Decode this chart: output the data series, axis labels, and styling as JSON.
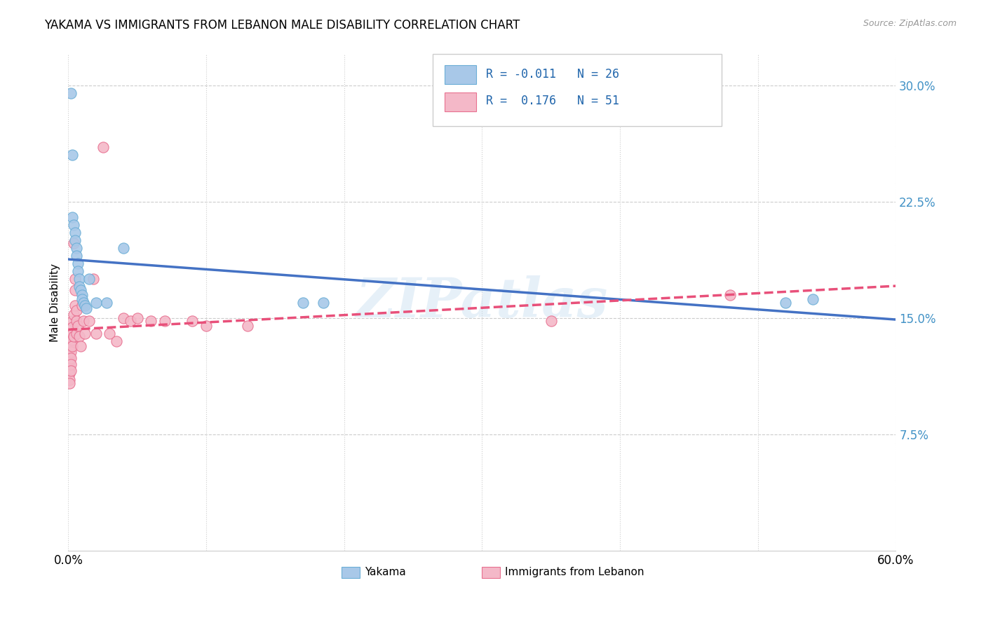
{
  "title": "YAKAMA VS IMMIGRANTS FROM LEBANON MALE DISABILITY CORRELATION CHART",
  "source": "Source: ZipAtlas.com",
  "ylabel": "Male Disability",
  "x_min": 0.0,
  "x_max": 0.6,
  "y_min": 0.0,
  "y_max": 0.32,
  "x_ticks": [
    0.0,
    0.1,
    0.2,
    0.3,
    0.4,
    0.5,
    0.6
  ],
  "x_tick_labels": [
    "0.0%",
    "",
    "",
    "",
    "",
    "",
    "60.0%"
  ],
  "y_ticks_right": [
    0.075,
    0.15,
    0.225,
    0.3
  ],
  "y_tick_labels_right": [
    "7.5%",
    "15.0%",
    "22.5%",
    "30.0%"
  ],
  "legend_label1": "Yakama",
  "legend_label2": "Immigrants from Lebanon",
  "R1": "-0.011",
  "N1": "26",
  "R2": "0.176",
  "N2": "51",
  "color_blue": "#a8c8e8",
  "color_blue_edge": "#6baed6",
  "color_pink": "#f4b8c8",
  "color_pink_edge": "#e87090",
  "color_line_blue": "#4472c4",
  "color_line_pink": "#e8507a",
  "watermark": "ZIPatlas",
  "yakama_x": [
    0.002,
    0.003,
    0.003,
    0.004,
    0.005,
    0.005,
    0.006,
    0.006,
    0.007,
    0.007,
    0.008,
    0.008,
    0.009,
    0.01,
    0.01,
    0.011,
    0.012,
    0.013,
    0.015,
    0.02,
    0.028,
    0.04,
    0.17,
    0.185,
    0.52,
    0.54
  ],
  "yakama_y": [
    0.295,
    0.255,
    0.215,
    0.21,
    0.205,
    0.2,
    0.195,
    0.19,
    0.185,
    0.18,
    0.175,
    0.17,
    0.168,
    0.165,
    0.162,
    0.16,
    0.158,
    0.156,
    0.175,
    0.16,
    0.16,
    0.195,
    0.16,
    0.16,
    0.16,
    0.162
  ],
  "lebanon_x": [
    0.001,
    0.001,
    0.001,
    0.001,
    0.001,
    0.001,
    0.001,
    0.001,
    0.002,
    0.002,
    0.002,
    0.002,
    0.002,
    0.002,
    0.002,
    0.003,
    0.003,
    0.003,
    0.003,
    0.003,
    0.004,
    0.004,
    0.004,
    0.005,
    0.005,
    0.005,
    0.006,
    0.006,
    0.006,
    0.007,
    0.008,
    0.009,
    0.01,
    0.011,
    0.012,
    0.015,
    0.018,
    0.02,
    0.025,
    0.03,
    0.035,
    0.04,
    0.045,
    0.05,
    0.06,
    0.07,
    0.09,
    0.1,
    0.13,
    0.35,
    0.48
  ],
  "lebanon_y": [
    0.135,
    0.13,
    0.125,
    0.122,
    0.118,
    0.114,
    0.11,
    0.108,
    0.14,
    0.136,
    0.132,
    0.128,
    0.124,
    0.12,
    0.116,
    0.148,
    0.144,
    0.14,
    0.136,
    0.132,
    0.198,
    0.152,
    0.138,
    0.175,
    0.168,
    0.158,
    0.155,
    0.148,
    0.14,
    0.145,
    0.138,
    0.132,
    0.158,
    0.148,
    0.14,
    0.148,
    0.175,
    0.14,
    0.26,
    0.14,
    0.135,
    0.15,
    0.148,
    0.15,
    0.148,
    0.148,
    0.148,
    0.145,
    0.145,
    0.148,
    0.165
  ]
}
